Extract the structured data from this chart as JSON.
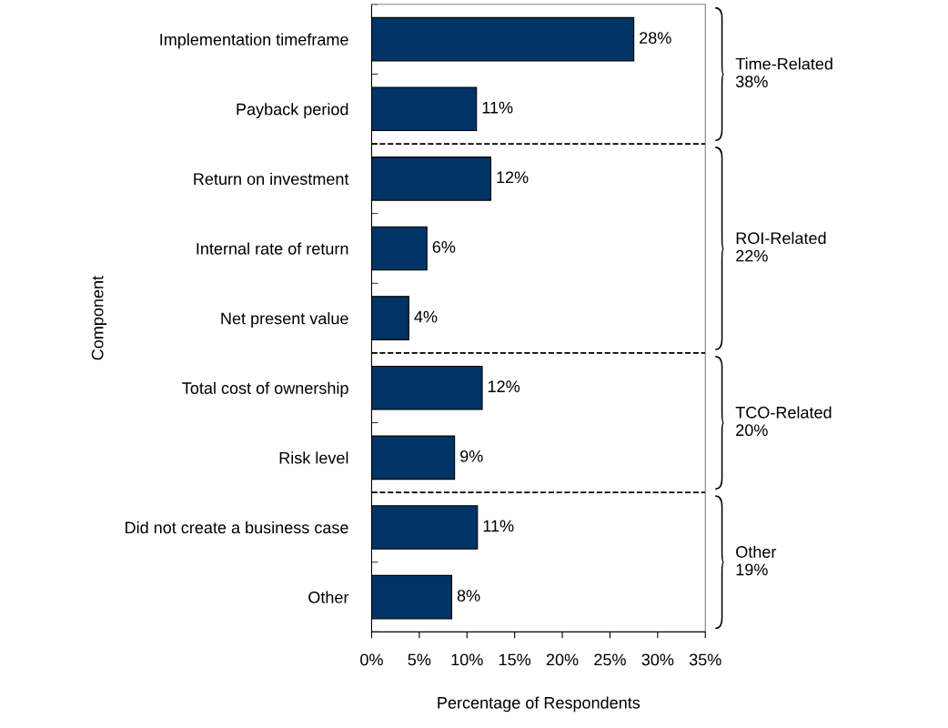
{
  "chart_data": {
    "type": "bar",
    "orientation": "horizontal",
    "xlabel": "Percentage of Respondents",
    "ylabel": "Component",
    "categories": [
      "Implementation timeframe",
      "Payback period",
      "Return on investment",
      "Internal rate of return",
      "Net present value",
      "Total cost of ownership",
      "Risk level",
      "Did not create a business case",
      "Other"
    ],
    "values": [
      27.5,
      11,
      12.5,
      5.8,
      3.9,
      11.6,
      8.7,
      11.1,
      8.4
    ],
    "value_labels": [
      "28%",
      "11%",
      "12%",
      "6%",
      "4%",
      "12%",
      "9%",
      "11%",
      "8%"
    ],
    "color": "#003366",
    "xlim": [
      0,
      35
    ],
    "xticks": [
      {
        "value": 0,
        "label": "0%"
      },
      {
        "value": 5,
        "label": "5%"
      },
      {
        "value": 10,
        "label": "10%"
      },
      {
        "value": 15,
        "label": "15%"
      },
      {
        "value": 20,
        "label": "20%"
      },
      {
        "value": 25,
        "label": "25%"
      },
      {
        "value": 30,
        "label": "30%"
      },
      {
        "value": 35,
        "label": "35%"
      }
    ],
    "annotations": [
      "Time-Related\n38%",
      "ROI-Related\n22%",
      "TCO-Related\n20%",
      "Other\n19%"
    ],
    "grid": false,
    "legend": false
  }
}
